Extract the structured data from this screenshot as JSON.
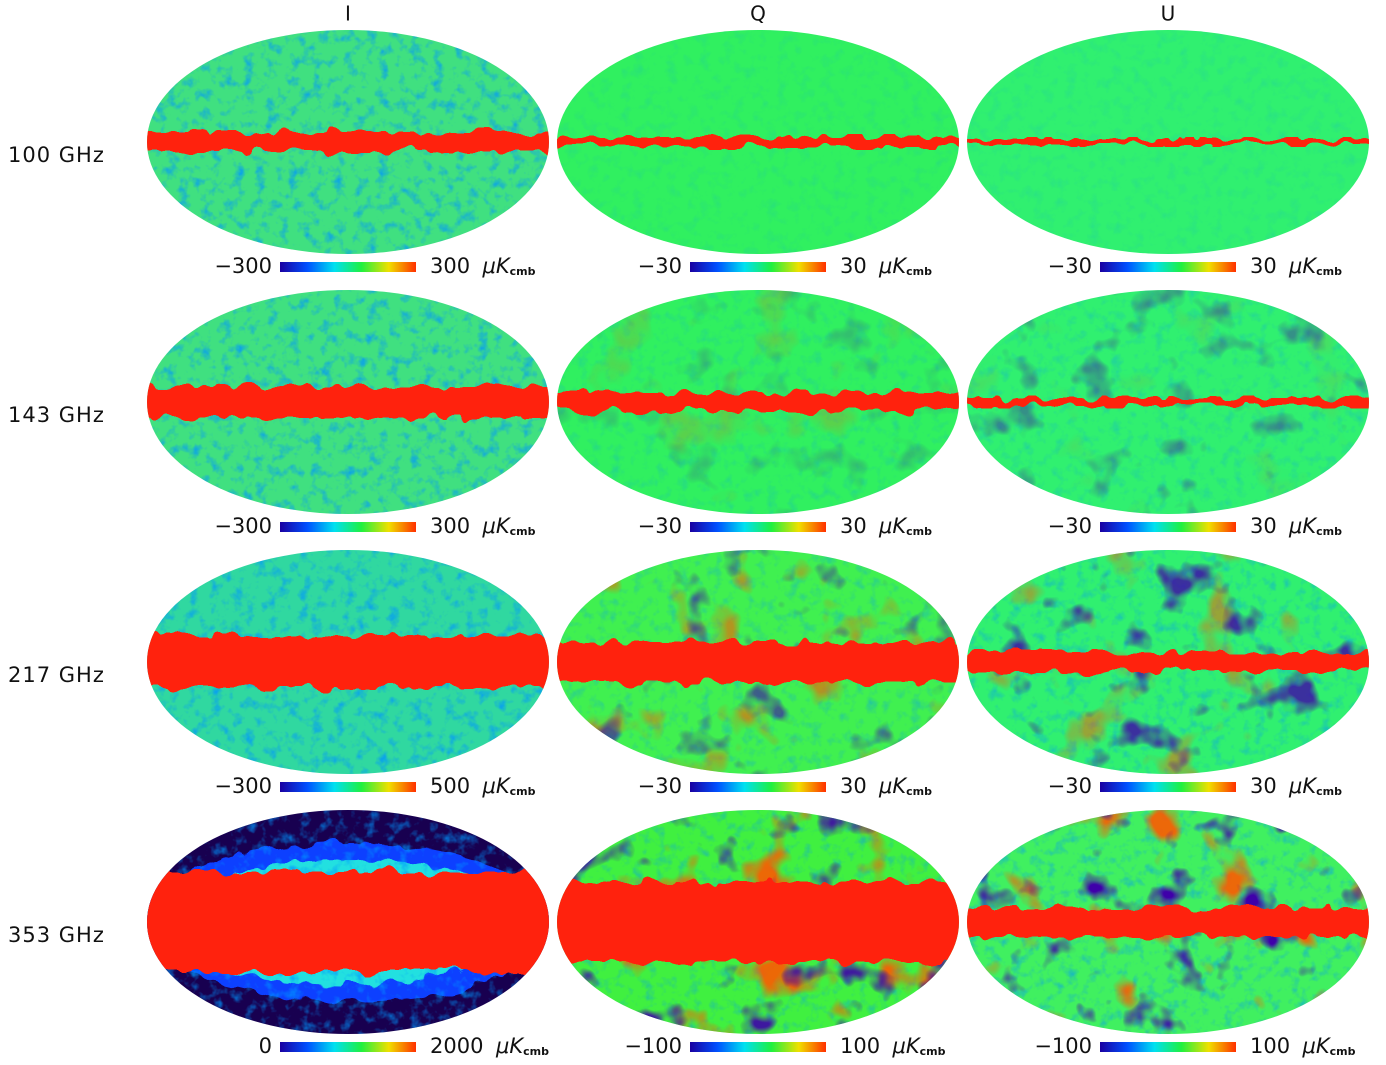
{
  "columns": [
    "I",
    "Q",
    "U"
  ],
  "unit": {
    "symbol": "μK",
    "subscript": "cmb"
  },
  "rows": [
    {
      "label": "100 GHz",
      "cells": [
        {
          "min": "−300",
          "max": "300"
        },
        {
          "min": "−30",
          "max": "30"
        },
        {
          "min": "−30",
          "max": "30"
        }
      ]
    },
    {
      "label": "143 GHz",
      "cells": [
        {
          "min": "−300",
          "max": "300"
        },
        {
          "min": "−30",
          "max": "30"
        },
        {
          "min": "−30",
          "max": "30"
        }
      ]
    },
    {
      "label": "217 GHz",
      "cells": [
        {
          "min": "−300",
          "max": "500"
        },
        {
          "min": "−30",
          "max": "30"
        },
        {
          "min": "−30",
          "max": "30"
        }
      ]
    },
    {
      "label": "353 GHz",
      "cells": [
        {
          "min": "0",
          "max": "2000"
        },
        {
          "min": "−100",
          "max": "100"
        },
        {
          "min": "−100",
          "max": "100"
        }
      ]
    }
  ]
}
